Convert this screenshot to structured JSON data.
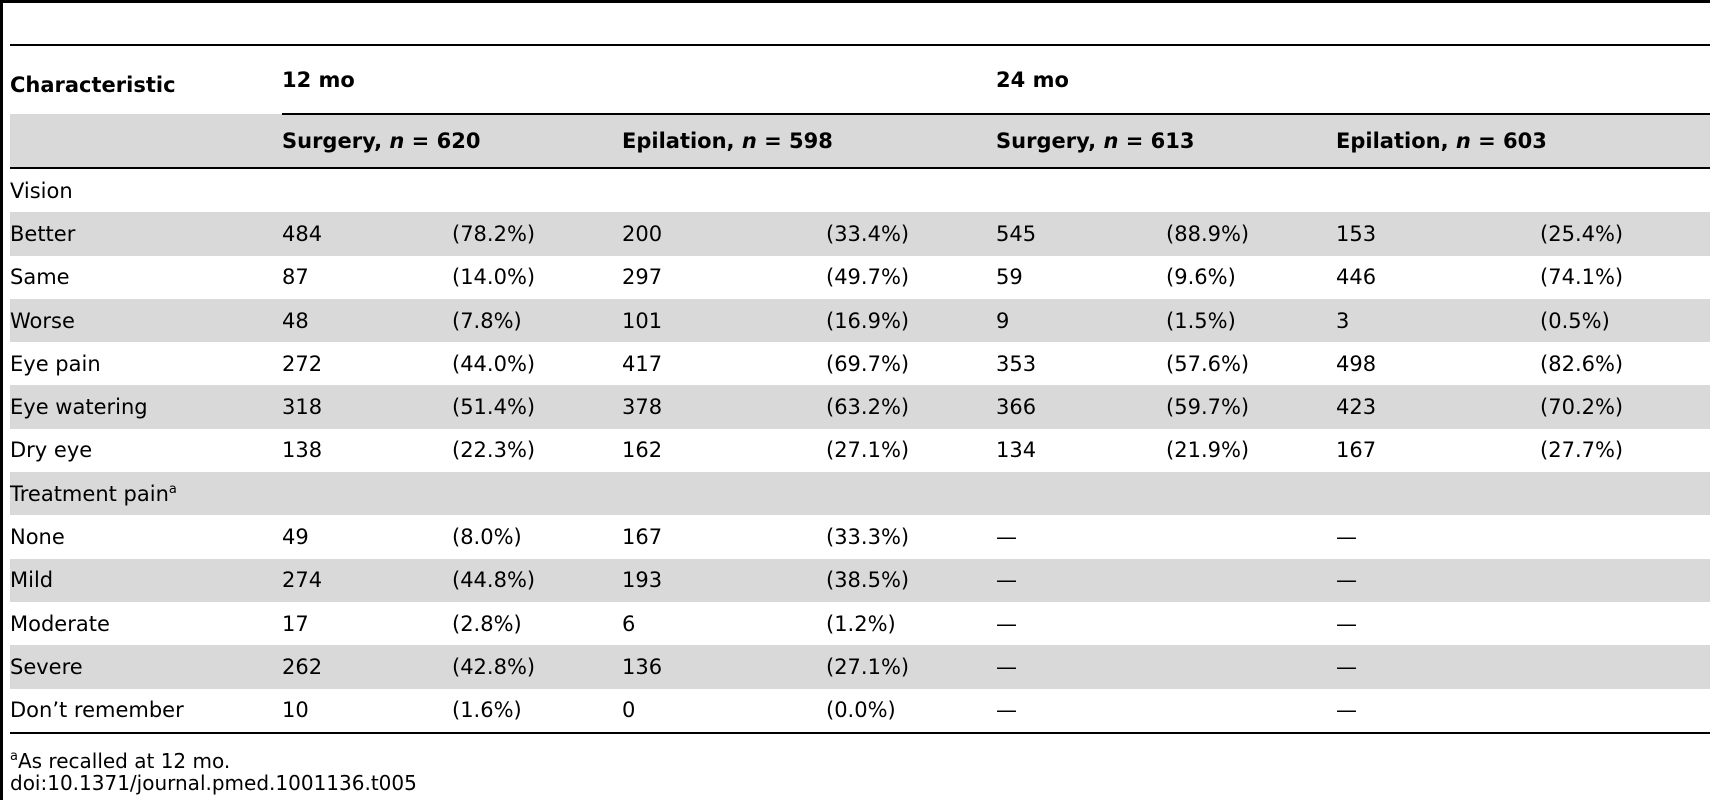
{
  "table": {
    "header": {
      "characteristic": "Characteristic",
      "period_12": "12 mo",
      "period_24": "24 mo",
      "groups": [
        {
          "label": "Surgery,",
          "n_label": "n",
          "n_value": " = 620"
        },
        {
          "label": "Epilation,",
          "n_label": "n",
          "n_value": " = 598"
        },
        {
          "label": "Surgery,",
          "n_label": "n",
          "n_value": " = 613"
        },
        {
          "label": "Epilation,",
          "n_label": "n",
          "n_value": " = 603"
        }
      ]
    },
    "rows": [
      {
        "label": "Vision",
        "section": true,
        "sup": "",
        "cells": [
          "",
          "",
          "",
          "",
          "",
          "",
          "",
          ""
        ]
      },
      {
        "label": "Better",
        "section": false,
        "sup": "",
        "cells": [
          "484",
          "(78.2%)",
          "200",
          "(33.4%)",
          "545",
          "(88.9%)",
          "153",
          "(25.4%)"
        ]
      },
      {
        "label": "Same",
        "section": false,
        "sup": "",
        "cells": [
          "87",
          "(14.0%)",
          "297",
          "(49.7%)",
          "59",
          "(9.6%)",
          "446",
          "(74.1%)"
        ]
      },
      {
        "label": "Worse",
        "section": false,
        "sup": "",
        "cells": [
          "48",
          "(7.8%)",
          "101",
          "(16.9%)",
          "9",
          "(1.5%)",
          "3",
          "(0.5%)"
        ]
      },
      {
        "label": "Eye pain",
        "section": false,
        "sup": "",
        "cells": [
          "272",
          "(44.0%)",
          "417",
          "(69.7%)",
          "353",
          "(57.6%)",
          "498",
          "(82.6%)"
        ]
      },
      {
        "label": "Eye watering",
        "section": false,
        "sup": "",
        "cells": [
          "318",
          "(51.4%)",
          "378",
          "(63.2%)",
          "366",
          "(59.7%)",
          "423",
          "(70.2%)"
        ]
      },
      {
        "label": "Dry eye",
        "section": false,
        "sup": "",
        "cells": [
          "138",
          "(22.3%)",
          "162",
          "(27.1%)",
          "134",
          "(21.9%)",
          "167",
          "(27.7%)"
        ]
      },
      {
        "label": "Treatment pain",
        "section": true,
        "sup": "a",
        "cells": [
          "",
          "",
          "",
          "",
          "",
          "",
          "",
          ""
        ]
      },
      {
        "label": "None",
        "section": false,
        "sup": "",
        "cells": [
          "49",
          "(8.0%)",
          "167",
          "(33.3%)",
          "—",
          "",
          "—",
          ""
        ]
      },
      {
        "label": "Mild",
        "section": false,
        "sup": "",
        "cells": [
          "274",
          "(44.8%)",
          "193",
          "(38.5%)",
          "—",
          "",
          "—",
          ""
        ]
      },
      {
        "label": "Moderate",
        "section": false,
        "sup": "",
        "cells": [
          "17",
          "(2.8%)",
          "6",
          "(1.2%)",
          "—",
          "",
          "—",
          ""
        ]
      },
      {
        "label": "Severe",
        "section": false,
        "sup": "",
        "cells": [
          "262",
          "(42.8%)",
          "136",
          "(27.1%)",
          "—",
          "",
          "—",
          ""
        ]
      },
      {
        "label": "Don’t remember",
        "section": false,
        "sup": "",
        "cells": [
          "10",
          "(1.6%)",
          "0",
          "(0.0%)",
          "—",
          "",
          "—",
          ""
        ]
      }
    ]
  },
  "footnote": {
    "marker": "a",
    "text": "As recalled at 12 mo."
  },
  "doi": "doi:10.1371/journal.pmed.1001136.t005",
  "colors": {
    "shade": "#d9d9d9",
    "rule": "#000000"
  }
}
